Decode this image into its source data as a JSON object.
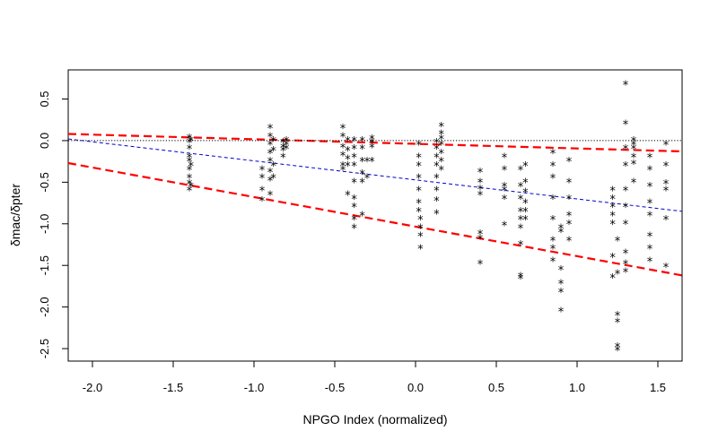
{
  "chart_data": {
    "type": "scatter",
    "title": "",
    "xlabel": "NPGO Index (normalized)",
    "ylabel": "δmac/δpter",
    "xlim": [
      -2.15,
      1.65
    ],
    "ylim": [
      -2.65,
      0.85
    ],
    "xticks": [
      -2.0,
      -1.5,
      -1.0,
      -0.5,
      0.0,
      0.5,
      1.0,
      1.5
    ],
    "xtick_labels": [
      "-2.0",
      "-1.5",
      "-1.0",
      "-0.5",
      "0.0",
      "0.5",
      "1.0",
      "1.5"
    ],
    "yticks": [
      -2.5,
      -2.0,
      -1.5,
      -1.0,
      -0.5,
      0.0,
      0.5
    ],
    "ytick_labels": [
      "-2.5",
      "-2.0",
      "-1.5",
      "-1.0",
      "-0.5",
      "0.0",
      "0.5"
    ],
    "grid": false,
    "marker": "*",
    "points": [
      [
        -1.4,
        0.03
      ],
      [
        -1.4,
        -0.02
      ],
      [
        -1.4,
        -0.1
      ],
      [
        -1.4,
        -0.2
      ],
      [
        -1.4,
        -0.25
      ],
      [
        -1.4,
        -0.35
      ],
      [
        -1.4,
        -0.45
      ],
      [
        -1.4,
        -0.52
      ],
      [
        -1.4,
        -0.6
      ],
      [
        -1.39,
        0.0
      ],
      [
        -1.39,
        -0.3
      ],
      [
        -1.39,
        -0.55
      ],
      [
        -0.95,
        -0.35
      ],
      [
        -0.95,
        -0.45
      ],
      [
        -0.95,
        -0.6
      ],
      [
        -0.95,
        -0.72
      ],
      [
        -0.9,
        0.15
      ],
      [
        -0.9,
        0.05
      ],
      [
        -0.9,
        -0.05
      ],
      [
        -0.9,
        -0.15
      ],
      [
        -0.9,
        -0.25
      ],
      [
        -0.9,
        -0.38
      ],
      [
        -0.9,
        -0.48
      ],
      [
        -0.9,
        -0.65
      ],
      [
        -0.88,
        0.0
      ],
      [
        -0.88,
        -0.12
      ],
      [
        -0.88,
        -0.3
      ],
      [
        -0.88,
        -0.45
      ],
      [
        -0.82,
        -0.02
      ],
      [
        -0.82,
        -0.08
      ],
      [
        -0.82,
        -0.12
      ],
      [
        -0.82,
        -0.2
      ],
      [
        -0.8,
        0.0
      ],
      [
        -0.8,
        -0.05
      ],
      [
        -0.8,
        -0.1
      ],
      [
        -0.45,
        0.15
      ],
      [
        -0.45,
        0.05
      ],
      [
        -0.45,
        -0.08
      ],
      [
        -0.45,
        -0.18
      ],
      [
        -0.45,
        -0.3
      ],
      [
        -0.45,
        -0.35
      ],
      [
        -0.42,
        0.0
      ],
      [
        -0.42,
        -0.12
      ],
      [
        -0.42,
        -0.22
      ],
      [
        -0.42,
        -0.3
      ],
      [
        -0.42,
        -0.65
      ],
      [
        -0.38,
        0.0
      ],
      [
        -0.38,
        -0.1
      ],
      [
        -0.38,
        -0.2
      ],
      [
        -0.38,
        -0.3
      ],
      [
        -0.38,
        -0.5
      ],
      [
        -0.38,
        -0.7
      ],
      [
        -0.38,
        -0.8
      ],
      [
        -0.38,
        -0.95
      ],
      [
        -0.38,
        -1.05
      ],
      [
        -0.33,
        0.0
      ],
      [
        -0.33,
        -0.1
      ],
      [
        -0.33,
        -0.25
      ],
      [
        -0.33,
        -0.4
      ],
      [
        -0.33,
        -0.5
      ],
      [
        -0.33,
        -0.9
      ],
      [
        -0.3,
        -0.25
      ],
      [
        -0.3,
        -0.45
      ],
      [
        -0.27,
        0.02
      ],
      [
        -0.27,
        -0.02
      ],
      [
        -0.27,
        -0.08
      ],
      [
        -0.27,
        -0.25
      ],
      [
        0.02,
        -0.05
      ],
      [
        0.02,
        -0.2
      ],
      [
        0.02,
        -0.3
      ],
      [
        0.02,
        -0.45
      ],
      [
        0.02,
        -0.6
      ],
      [
        0.02,
        -0.75
      ],
      [
        0.02,
        -0.85
      ],
      [
        0.03,
        -0.95
      ],
      [
        0.03,
        -1.05
      ],
      [
        0.03,
        -1.15
      ],
      [
        0.03,
        -1.3
      ],
      [
        0.13,
        -0.02
      ],
      [
        0.13,
        -0.1
      ],
      [
        0.13,
        -0.2
      ],
      [
        0.13,
        -0.3
      ],
      [
        0.13,
        -0.45
      ],
      [
        0.13,
        -0.6
      ],
      [
        0.13,
        -0.72
      ],
      [
        0.13,
        -0.88
      ],
      [
        0.16,
        0.17
      ],
      [
        0.16,
        0.08
      ],
      [
        0.16,
        0.02
      ],
      [
        0.16,
        -0.05
      ],
      [
        0.16,
        -0.15
      ],
      [
        0.16,
        -0.25
      ],
      [
        0.16,
        -0.35
      ],
      [
        0.4,
        -0.38
      ],
      [
        0.4,
        -0.5
      ],
      [
        0.4,
        -0.58
      ],
      [
        0.4,
        -0.65
      ],
      [
        0.4,
        -1.12
      ],
      [
        0.4,
        -1.18
      ],
      [
        0.4,
        -1.48
      ],
      [
        0.55,
        -0.2
      ],
      [
        0.55,
        -0.35
      ],
      [
        0.55,
        -0.55
      ],
      [
        0.55,
        -0.6
      ],
      [
        0.55,
        -0.7
      ],
      [
        0.55,
        -1.02
      ],
      [
        0.65,
        -0.35
      ],
      [
        0.65,
        -0.55
      ],
      [
        0.65,
        -0.7
      ],
      [
        0.65,
        -0.85
      ],
      [
        0.65,
        -0.95
      ],
      [
        0.65,
        -1.05
      ],
      [
        0.65,
        -1.25
      ],
      [
        0.65,
        -1.63
      ],
      [
        0.65,
        -1.66
      ],
      [
        0.68,
        -0.3
      ],
      [
        0.68,
        -0.5
      ],
      [
        0.68,
        -0.62
      ],
      [
        0.68,
        -0.75
      ],
      [
        0.68,
        -0.85
      ],
      [
        0.68,
        -0.95
      ],
      [
        0.85,
        -0.15
      ],
      [
        0.85,
        -0.3
      ],
      [
        0.85,
        -0.45
      ],
      [
        0.85,
        -0.7
      ],
      [
        0.85,
        -0.95
      ],
      [
        0.85,
        -1.2
      ],
      [
        0.85,
        -1.3
      ],
      [
        0.85,
        -1.45
      ],
      [
        0.9,
        -1.55
      ],
      [
        0.9,
        -1.72
      ],
      [
        0.9,
        -1.82
      ],
      [
        0.9,
        -2.05
      ],
      [
        0.9,
        -1.05
      ],
      [
        0.9,
        -1.1
      ],
      [
        0.95,
        -0.25
      ],
      [
        0.95,
        -0.5
      ],
      [
        0.95,
        -0.7
      ],
      [
        0.95,
        -0.9
      ],
      [
        0.95,
        -1.0
      ],
      [
        0.95,
        -1.2
      ],
      [
        1.22,
        -0.6
      ],
      [
        1.22,
        -0.7
      ],
      [
        1.22,
        -0.8
      ],
      [
        1.22,
        -0.9
      ],
      [
        1.22,
        -1.0
      ],
      [
        1.22,
        -1.4
      ],
      [
        1.22,
        -1.65
      ],
      [
        1.25,
        -1.2
      ],
      [
        1.25,
        -1.6
      ],
      [
        1.25,
        -2.1
      ],
      [
        1.25,
        -2.18
      ],
      [
        1.25,
        -2.48
      ],
      [
        1.25,
        -2.52
      ],
      [
        1.3,
        0.67
      ],
      [
        1.3,
        0.2
      ],
      [
        1.3,
        -0.1
      ],
      [
        1.3,
        -0.3
      ],
      [
        1.3,
        -0.6
      ],
      [
        1.3,
        -0.8
      ],
      [
        1.3,
        -1.0
      ],
      [
        1.3,
        -1.35
      ],
      [
        1.3,
        -1.48
      ],
      [
        1.3,
        -1.58
      ],
      [
        1.35,
        0.0
      ],
      [
        1.35,
        -0.05
      ],
      [
        1.35,
        -0.1
      ],
      [
        1.35,
        -0.2
      ],
      [
        1.35,
        -0.28
      ],
      [
        1.35,
        -0.5
      ],
      [
        1.45,
        -0.2
      ],
      [
        1.45,
        -0.35
      ],
      [
        1.45,
        -0.55
      ],
      [
        1.45,
        -0.75
      ],
      [
        1.45,
        -0.9
      ],
      [
        1.45,
        -1.15
      ],
      [
        1.45,
        -1.3
      ],
      [
        1.45,
        -1.45
      ],
      [
        1.55,
        -0.05
      ],
      [
        1.55,
        -0.3
      ],
      [
        1.55,
        -0.52
      ],
      [
        1.55,
        -0.6
      ],
      [
        1.55,
        -0.95
      ],
      [
        1.55,
        -1.52
      ]
    ],
    "lines": [
      {
        "name": "",
        "style": "dashed",
        "color": "#ff0000",
        "width": 2.2,
        "x": [
          -2.15,
          1.65
        ],
        "y": [
          0.08,
          -0.13
        ]
      },
      {
        "name": "",
        "style": "dashed",
        "color": "#ff0000",
        "width": 2.2,
        "x": [
          -2.15,
          1.65
        ],
        "y": [
          -0.27,
          -1.62
        ]
      },
      {
        "name": "",
        "style": "dashed",
        "color": "#0000cc",
        "width": 1.0,
        "x": [
          -2.15,
          1.65
        ],
        "y": [
          0.02,
          -0.85
        ]
      },
      {
        "name": "",
        "style": "dotted",
        "color": "#000000",
        "width": 1.0,
        "x": [
          -2.15,
          1.65
        ],
        "y": [
          0.0,
          0.0
        ]
      }
    ]
  }
}
